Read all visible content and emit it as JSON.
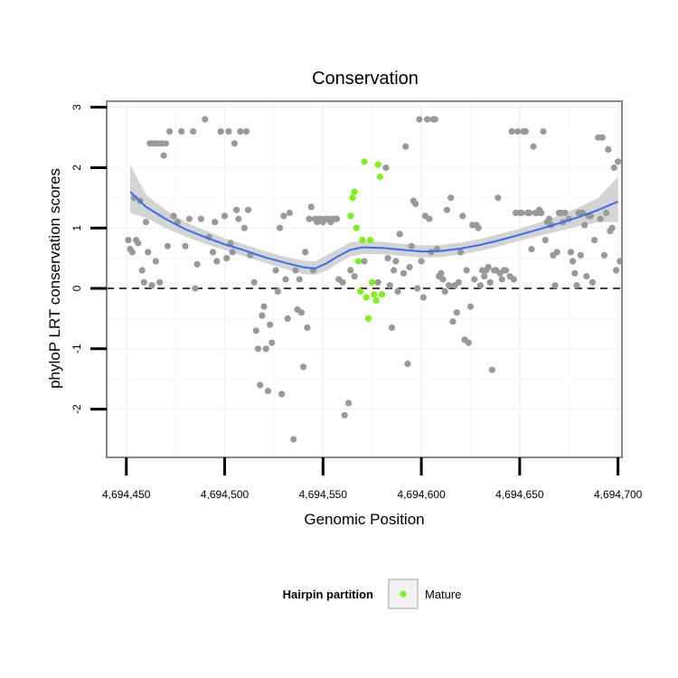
{
  "chart_data": {
    "type": "scatter",
    "title": "Conservation",
    "xlabel": "Genomic Position",
    "ylabel": "phyloP LRT conservation scores",
    "xlim": [
      4694440,
      4694702
    ],
    "ylim": [
      -2.8,
      3.1
    ],
    "x_ticks": [
      4694450,
      4694500,
      4694550,
      4694600,
      4694650,
      4694700
    ],
    "x_tick_labels": [
      "4,694,450",
      "4,694,500",
      "4,694,550",
      "4,694,600",
      "4,694,650",
      "4,694,700"
    ],
    "y_ticks": [
      -2,
      -1,
      0,
      1,
      2,
      3
    ],
    "y_tick_labels": [
      "-2",
      "-1",
      "0",
      "1",
      "2",
      "3"
    ],
    "reference_line": {
      "y": 0,
      "style": "dashed"
    },
    "legend": {
      "title": "Hairpin partition",
      "entries": [
        {
          "label": "Mature",
          "color": "#7cf21a"
        }
      ]
    },
    "colors": {
      "other": "#999999",
      "mature": "#7cf21a",
      "smooth": "#3a6ee8",
      "band": "#d4d4d4",
      "panel_border": "#888888",
      "grid": "#f3f3f3"
    },
    "series": [
      {
        "name": "Other",
        "points": [
          [
            4694451,
            0.8
          ],
          [
            4694452,
            0.65
          ],
          [
            4694453,
            0.6
          ],
          [
            4694454,
            1.5
          ],
          [
            4694455,
            0.8
          ],
          [
            4694456,
            0.75
          ],
          [
            4694457,
            1.45
          ],
          [
            4694458,
            0.3
          ],
          [
            4694459,
            0.1
          ],
          [
            4694460,
            1.1
          ],
          [
            4694461,
            0.6
          ],
          [
            4694462,
            2.4
          ],
          [
            4694463,
            0.05
          ],
          [
            4694464,
            2.4
          ],
          [
            4694465,
            0.45
          ],
          [
            4694466,
            2.4
          ],
          [
            4694467,
            0.1
          ],
          [
            4694468,
            2.4
          ],
          [
            4694469,
            2.2
          ],
          [
            4694470,
            2.4
          ],
          [
            4694471,
            0.7
          ],
          [
            4694472,
            2.6
          ],
          [
            4694474,
            1.2
          ],
          [
            4694476,
            1.1
          ],
          [
            4694478,
            2.6
          ],
          [
            4694480,
            0.7
          ],
          [
            4694482,
            1.15
          ],
          [
            4694484,
            2.6
          ],
          [
            4694485,
            0.0
          ],
          [
            4694486,
            0.4
          ],
          [
            4694488,
            1.15
          ],
          [
            4694490,
            2.8
          ],
          [
            4694492,
            0.85
          ],
          [
            4694494,
            0.6
          ],
          [
            4694495,
            1.1
          ],
          [
            4694496,
            0.45
          ],
          [
            4694498,
            2.6
          ],
          [
            4694500,
            1.2
          ],
          [
            4694501,
            0.5
          ],
          [
            4694502,
            2.6
          ],
          [
            4694503,
            0.75
          ],
          [
            4694504,
            0.6
          ],
          [
            4694505,
            2.4
          ],
          [
            4694506,
            1.3
          ],
          [
            4694507,
            1.15
          ],
          [
            4694508,
            2.6
          ],
          [
            4694510,
            1.0
          ],
          [
            4694511,
            2.6
          ],
          [
            4694512,
            1.3
          ],
          [
            4694513,
            0.55
          ],
          [
            4694515,
            0.1
          ],
          [
            4694516,
            -0.7
          ],
          [
            4694517,
            -1.0
          ],
          [
            4694518,
            -1.6
          ],
          [
            4694519,
            -0.45
          ],
          [
            4694520,
            -0.3
          ],
          [
            4694521,
            -1.0
          ],
          [
            4694522,
            -1.7
          ],
          [
            4694523,
            -0.6
          ],
          [
            4694524,
            -0.9
          ],
          [
            4694526,
            0.3
          ],
          [
            4694527,
            -0.05
          ],
          [
            4694528,
            1.0
          ],
          [
            4694529,
            -1.75
          ],
          [
            4694530,
            1.2
          ],
          [
            4694531,
            0.15
          ],
          [
            4694532,
            -0.5
          ],
          [
            4694533,
            1.25
          ],
          [
            4694535,
            -2.5
          ],
          [
            4694536,
            0.3
          ],
          [
            4694537,
            -0.35
          ],
          [
            4694538,
            0.15
          ],
          [
            4694539,
            -0.4
          ],
          [
            4694540,
            -1.3
          ],
          [
            4694541,
            0.6
          ],
          [
            4694542,
            -0.65
          ],
          [
            4694543,
            1.15
          ],
          [
            4694544,
            1.35
          ],
          [
            4694545,
            0.3
          ],
          [
            4694546,
            1.15
          ],
          [
            4694547,
            1.1
          ],
          [
            4694548,
            1.15
          ],
          [
            4694549,
            1.15
          ],
          [
            4694550,
            1.1
          ],
          [
            4694551,
            1.15
          ],
          [
            4694552,
            1.15
          ],
          [
            4694553,
            1.15
          ],
          [
            4694554,
            1.1
          ],
          [
            4694555,
            1.15
          ],
          [
            4694556,
            1.15
          ],
          [
            4694557,
            1.15
          ],
          [
            4694558,
            0.15
          ],
          [
            4694560,
            0.1
          ],
          [
            4694561,
            -2.1
          ],
          [
            4694563,
            -1.9
          ],
          [
            4694564,
            0.3
          ],
          [
            4694566,
            0.2
          ],
          [
            4694571,
            0.45
          ],
          [
            4694578,
            0.1
          ],
          [
            4694580,
            -0.1
          ],
          [
            4694582,
            2.0
          ],
          [
            4694583,
            0.5
          ],
          [
            4694584,
            0.05
          ],
          [
            4694585,
            -0.65
          ],
          [
            4694586,
            0.3
          ],
          [
            4694587,
            0.45
          ],
          [
            4694588,
            -0.05
          ],
          [
            4694589,
            0.9
          ],
          [
            4694591,
            0.25
          ],
          [
            4694592,
            2.35
          ],
          [
            4694593,
            -1.25
          ],
          [
            4694594,
            0.35
          ],
          [
            4694595,
            0.7
          ],
          [
            4694596,
            1.45
          ],
          [
            4694597,
            1.4
          ],
          [
            4694598,
            0.0
          ],
          [
            4694599,
            2.8
          ],
          [
            4694600,
            0.45
          ],
          [
            4694601,
            -0.15
          ],
          [
            4694602,
            1.2
          ],
          [
            4694603,
            2.8
          ],
          [
            4694604,
            1.15
          ],
          [
            4694605,
            0.6
          ],
          [
            4694606,
            2.8
          ],
          [
            4694607,
            2.8
          ],
          [
            4694608,
            0.65
          ],
          [
            4694609,
            0.2
          ],
          [
            4694610,
            0.25
          ],
          [
            4694611,
            0.15
          ],
          [
            4694612,
            -0.05
          ],
          [
            4694613,
            1.3
          ],
          [
            4694614,
            0.05
          ],
          [
            4694615,
            1.5
          ],
          [
            4694616,
            -0.55
          ],
          [
            4694617,
            0.05
          ],
          [
            4694618,
            -0.4
          ],
          [
            4694619,
            0.1
          ],
          [
            4694620,
            0.6
          ],
          [
            4694621,
            1.2
          ],
          [
            4694622,
            -0.85
          ],
          [
            4694623,
            0.3
          ],
          [
            4694624,
            -0.9
          ],
          [
            4694625,
            -0.3
          ],
          [
            4694626,
            1.05
          ],
          [
            4694627,
            0.15
          ],
          [
            4694628,
            1.05
          ],
          [
            4694629,
            1.0
          ],
          [
            4694630,
            0.05
          ],
          [
            4694631,
            0.3
          ],
          [
            4694632,
            0.2
          ],
          [
            4694633,
            0.3
          ],
          [
            4694634,
            0.35
          ],
          [
            4694635,
            0.1
          ],
          [
            4694636,
            -1.35
          ],
          [
            4694637,
            0.3
          ],
          [
            4694638,
            0.3
          ],
          [
            4694639,
            1.5
          ],
          [
            4694640,
            0.25
          ],
          [
            4694641,
            0.15
          ],
          [
            4694642,
            0.3
          ],
          [
            4694643,
            0.3
          ],
          [
            4694645,
            0.2
          ],
          [
            4694646,
            2.6
          ],
          [
            4694647,
            0.15
          ],
          [
            4694648,
            1.25
          ],
          [
            4694649,
            2.6
          ],
          [
            4694650,
            1.25
          ],
          [
            4694651,
            1.25
          ],
          [
            4694652,
            2.6
          ],
          [
            4694653,
            2.6
          ],
          [
            4694654,
            1.25
          ],
          [
            4694655,
            1.25
          ],
          [
            4694656,
            0.65
          ],
          [
            4694657,
            2.35
          ],
          [
            4694658,
            1.25
          ],
          [
            4694659,
            1.25
          ],
          [
            4694660,
            1.3
          ],
          [
            4694661,
            1.25
          ],
          [
            4694662,
            2.6
          ],
          [
            4694663,
            0.8
          ],
          [
            4694664,
            1.1
          ],
          [
            4694665,
            1.15
          ],
          [
            4694666,
            1.05
          ],
          [
            4694667,
            0.55
          ],
          [
            4694668,
            0.05
          ],
          [
            4694669,
            0.6
          ],
          [
            4694670,
            1.25
          ],
          [
            4694671,
            1.25
          ],
          [
            4694672,
            1.1
          ],
          [
            4694673,
            1.25
          ],
          [
            4694675,
            1.15
          ],
          [
            4694676,
            0.6
          ],
          [
            4694677,
            0.45
          ],
          [
            4694678,
            0.25
          ],
          [
            4694679,
            0.05
          ],
          [
            4694680,
            1.25
          ],
          [
            4694681,
            0.55
          ],
          [
            4694682,
            1.25
          ],
          [
            4694683,
            1.05
          ],
          [
            4694684,
            0.2
          ],
          [
            4694685,
            1.2
          ],
          [
            4694686,
            1.2
          ],
          [
            4694687,
            0.1
          ],
          [
            4694688,
            0.8
          ],
          [
            4694690,
            2.5
          ],
          [
            4694691,
            1.15
          ],
          [
            4694692,
            2.5
          ],
          [
            4694693,
            0.55
          ],
          [
            4694694,
            1.25
          ],
          [
            4694695,
            2.3
          ],
          [
            4694696,
            0.95
          ],
          [
            4694697,
            1.0
          ],
          [
            4694698,
            2.0
          ],
          [
            4694699,
            0.3
          ],
          [
            4694700,
            2.1
          ],
          [
            4694701,
            0.45
          ]
        ]
      },
      {
        "name": "Mature",
        "points": [
          [
            4694564,
            1.2
          ],
          [
            4694565,
            1.5
          ],
          [
            4694566,
            1.6
          ],
          [
            4694567,
            1.0
          ],
          [
            4694568,
            0.45
          ],
          [
            4694569,
            -0.05
          ],
          [
            4694570,
            0.8
          ],
          [
            4694571,
            2.1
          ],
          [
            4694572,
            -0.15
          ],
          [
            4694573,
            -0.5
          ],
          [
            4694574,
            0.8
          ],
          [
            4694575,
            0.1
          ],
          [
            4694576,
            -0.1
          ],
          [
            4694577,
            -0.2
          ],
          [
            4694578,
            2.05
          ],
          [
            4694579,
            1.85
          ],
          [
            4694580,
            -0.1
          ]
        ]
      }
    ],
    "smooth": {
      "points": [
        [
          4694452,
          1.6
        ],
        [
          4694460,
          1.35
        ],
        [
          4694470,
          1.15
        ],
        [
          4694480,
          0.98
        ],
        [
          4694490,
          0.85
        ],
        [
          4694500,
          0.73
        ],
        [
          4694510,
          0.63
        ],
        [
          4694520,
          0.52
        ],
        [
          4694530,
          0.43
        ],
        [
          4694540,
          0.35
        ],
        [
          4694546,
          0.33
        ],
        [
          4694552,
          0.42
        ],
        [
          4694558,
          0.54
        ],
        [
          4694564,
          0.64
        ],
        [
          4694570,
          0.68
        ],
        [
          4694580,
          0.67
        ],
        [
          4694590,
          0.64
        ],
        [
          4694600,
          0.61
        ],
        [
          4694610,
          0.62
        ],
        [
          4694620,
          0.66
        ],
        [
          4694630,
          0.72
        ],
        [
          4694640,
          0.8
        ],
        [
          4694650,
          0.89
        ],
        [
          4694660,
          0.98
        ],
        [
          4694670,
          1.08
        ],
        [
          4694680,
          1.18
        ],
        [
          4694690,
          1.3
        ],
        [
          4694700,
          1.44
        ]
      ],
      "band": [
        [
          4694452,
          1.25,
          2.05
        ],
        [
          4694460,
          1.17,
          1.55
        ],
        [
          4694470,
          1.0,
          1.3
        ],
        [
          4694480,
          0.86,
          1.1
        ],
        [
          4694490,
          0.74,
          0.96
        ],
        [
          4694500,
          0.63,
          0.83
        ],
        [
          4694510,
          0.53,
          0.73
        ],
        [
          4694520,
          0.43,
          0.62
        ],
        [
          4694530,
          0.33,
          0.53
        ],
        [
          4694540,
          0.24,
          0.46
        ],
        [
          4694546,
          0.22,
          0.45
        ],
        [
          4694552,
          0.3,
          0.55
        ],
        [
          4694558,
          0.42,
          0.66
        ],
        [
          4694564,
          0.53,
          0.76
        ],
        [
          4694570,
          0.57,
          0.79
        ],
        [
          4694580,
          0.57,
          0.77
        ],
        [
          4694590,
          0.54,
          0.74
        ],
        [
          4694600,
          0.51,
          0.71
        ],
        [
          4694610,
          0.52,
          0.72
        ],
        [
          4694620,
          0.56,
          0.76
        ],
        [
          4694630,
          0.62,
          0.82
        ],
        [
          4694640,
          0.7,
          0.9
        ],
        [
          4694650,
          0.79,
          0.99
        ],
        [
          4694660,
          0.87,
          1.09
        ],
        [
          4694670,
          0.95,
          1.21
        ],
        [
          4694680,
          1.03,
          1.34
        ],
        [
          4694690,
          1.1,
          1.5
        ],
        [
          4694700,
          1.1,
          1.85
        ]
      ]
    }
  }
}
